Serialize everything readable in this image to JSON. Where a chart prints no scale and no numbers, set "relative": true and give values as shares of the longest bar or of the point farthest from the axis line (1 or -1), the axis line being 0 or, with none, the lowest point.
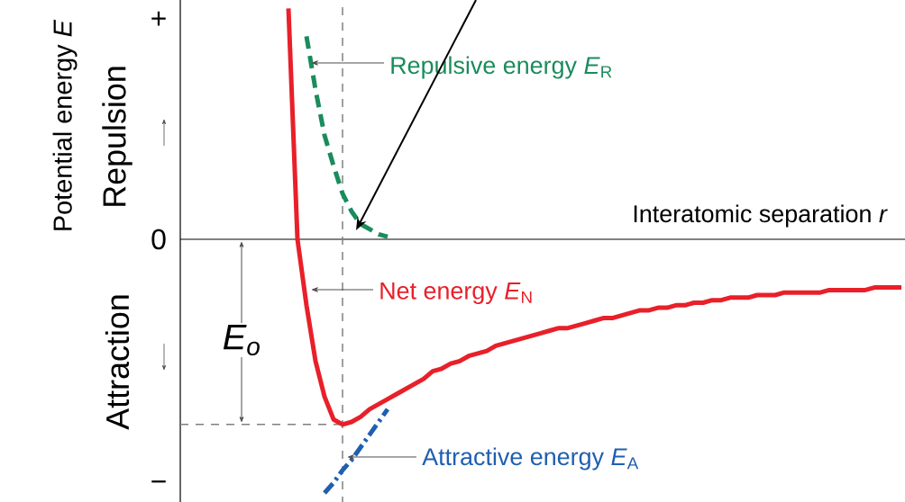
{
  "chart_data": {
    "type": "line",
    "relative": true,
    "xlabel": "Interatomic separation *r*",
    "ylabel": "Potential energy *E*",
    "categories": [
      null,
      null,
      null,
      null,
      null,
      null,
      null,
      null,
      null,
      null,
      null,
      null,
      null,
      null,
      null,
      null,
      null,
      null,
      null,
      null,
      null,
      null,
      null,
      null,
      null,
      null,
      null,
      null,
      null,
      null,
      null,
      null,
      null,
      null,
      null,
      null,
      null,
      null,
      null,
      null,
      null,
      null,
      null,
      null,
      null,
      null,
      null,
      null,
      null,
      null,
      null,
      null,
      null,
      null,
      null,
      null,
      null,
      null,
      null,
      null,
      null,
      null,
      null,
      null,
      null,
      null,
      null,
      null,
      null,
      null,
      null,
      null,
      null,
      null,
      null,
      null,
      null,
      null,
      null,
      null,
      null
    ],
    "series": [
      {
        "name": "Repulsive energy *E*$_{R}$",
        "color": "#1a8c5c",
        "line_style": "dashed",
        "values": [
          null,
          null,
          null,
          null,
          null,
          null,
          null,
          null,
          null,
          null,
          null,
          null,
          null,
          null,
          0.8,
          0.59,
          0.41,
          0.29,
          0.18,
          0.11,
          0.06,
          0.04,
          0.02,
          0.01,
          null,
          null,
          null,
          null,
          null,
          null,
          null,
          null,
          null,
          null,
          null,
          null,
          null,
          null,
          null,
          null,
          null,
          null,
          null,
          null,
          null,
          null,
          null,
          null,
          null,
          null,
          null,
          null,
          null,
          null,
          null,
          null,
          null,
          null,
          null,
          null,
          null,
          null,
          null,
          null,
          null,
          null,
          null,
          null,
          null,
          null,
          null,
          null,
          null,
          null,
          null,
          null,
          null,
          null,
          null,
          null,
          null
        ]
      },
      {
        "name": "Net energy *E*$_{N}$",
        "color": "#e8202a",
        "line_style": "solid",
        "values": [
          null,
          null,
          null,
          null,
          null,
          null,
          null,
          null,
          null,
          null,
          null,
          null,
          0.91,
          0,
          -0.26,
          -0.48,
          -0.62,
          -0.71,
          -0.73,
          -0.72,
          -0.7,
          -0.67,
          -0.65,
          -0.63,
          -0.61,
          -0.59,
          -0.57,
          -0.55,
          -0.52,
          -0.51,
          -0.49,
          -0.48,
          -0.46,
          -0.45,
          -0.44,
          -0.42,
          -0.41,
          -0.4,
          -0.39,
          -0.38,
          -0.37,
          -0.36,
          -0.35,
          -0.35,
          -0.34,
          -0.33,
          -0.32,
          -0.31,
          -0.31,
          -0.3,
          -0.29,
          -0.28,
          -0.28,
          -0.27,
          -0.27,
          -0.26,
          -0.26,
          -0.25,
          -0.25,
          -0.24,
          -0.24,
          -0.23,
          -0.23,
          -0.23,
          -0.22,
          -0.22,
          -0.22,
          -0.21,
          -0.21,
          -0.21,
          -0.21,
          -0.21,
          -0.2,
          -0.2,
          -0.2,
          -0.2,
          -0.2,
          -0.19,
          -0.19,
          -0.19,
          -0.19
        ]
      },
      {
        "name": "Attractive energy *E*$_{A}$",
        "color": "#1f5fb0",
        "line_style": "dashdot",
        "values": [
          null,
          null,
          null,
          null,
          null,
          null,
          null,
          null,
          null,
          null,
          null,
          null,
          null,
          null,
          null,
          null,
          -1,
          -0.96,
          -0.91,
          -0.87,
          -0.82,
          -0.77,
          -0.72,
          -0.67,
          null,
          null,
          null,
          null,
          null,
          null,
          null,
          null,
          null,
          null,
          null,
          null,
          null,
          null,
          null,
          null,
          null,
          null,
          null,
          null,
          null,
          null,
          null,
          null,
          null,
          null,
          null,
          null,
          null,
          null,
          null,
          null,
          null,
          null,
          null,
          null,
          null,
          null,
          null,
          null,
          null,
          null,
          null,
          null,
          null,
          null,
          null,
          null,
          null,
          null,
          null,
          null,
          null,
          null,
          null,
          null,
          null
        ]
      }
    ],
    "ref_lines": [
      {
        "axis": "y",
        "value": -0.73,
        "color": "#808080",
        "line_style": "dashed"
      }
    ],
    "annotations": [
      "Repulsion",
      "Attraction",
      "+",
      "0",
      "−",
      "E$_{o}$"
    ]
  }
}
